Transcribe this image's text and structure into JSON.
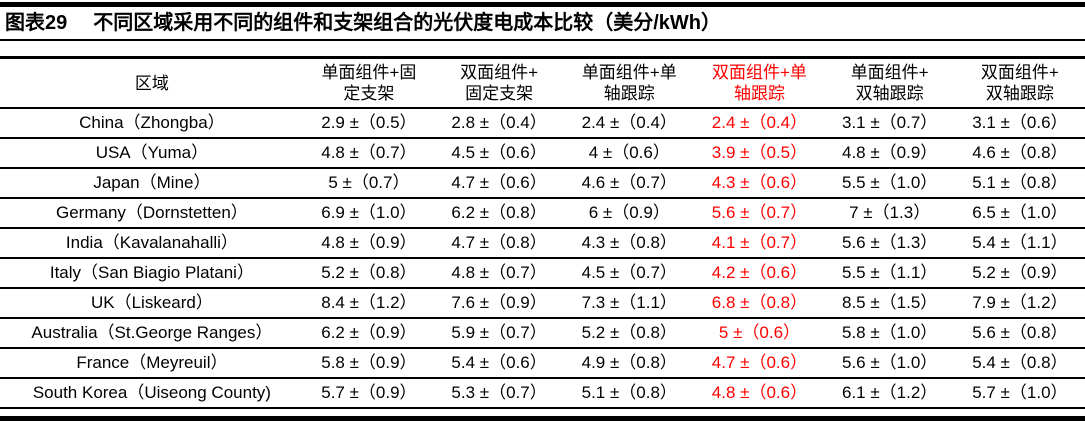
{
  "title": {
    "tag": "图表29",
    "text": "不同区域采用不同的组件和支架组合的光伏度电成本比较（美分/kWh）"
  },
  "table": {
    "region_header": "区域",
    "highlight_color": "#ff0000",
    "columns": [
      {
        "line1": "单面组件+固",
        "line2": "定支架",
        "highlight": false
      },
      {
        "line1": "双面组件+",
        "line2": "固定支架",
        "highlight": false
      },
      {
        "line1": "单面组件+单",
        "line2": "轴跟踪",
        "highlight": false
      },
      {
        "line1": "双面组件+单",
        "line2": "轴跟踪",
        "highlight": true
      },
      {
        "line1": "单面组件+",
        "line2": "双轴跟踪",
        "highlight": false
      },
      {
        "line1": "双面组件+",
        "line2": "双轴跟踪",
        "highlight": false
      }
    ],
    "rows": [
      {
        "region": "China（Zhongba）",
        "values": [
          "2.9 ±（0.5）",
          "2.8 ±（0.4）",
          "2.4 ±（0.4）",
          "2.4 ±（0.4）",
          "3.1 ±（0.7）",
          "3.1 ±（0.6）"
        ]
      },
      {
        "region": "USA（Yuma）",
        "values": [
          "4.8 ±（0.7）",
          "4.5 ±（0.6）",
          "4 ±（0.6）",
          "3.9 ±（0.5）",
          "4.8 ±（0.9）",
          "4.6 ±（0.8）"
        ]
      },
      {
        "region": "Japan（Mine）",
        "values": [
          "5 ±（0.7）",
          "4.7 ±（0.6）",
          "4.6 ±（0.7）",
          "4.3 ±（0.6）",
          "5.5 ±（1.0）",
          "5.1 ±（0.8）"
        ]
      },
      {
        "region": "Germany（Dornstetten）",
        "values": [
          "6.9 ±（1.0）",
          "6.2 ±（0.8）",
          "6 ±（0.9）",
          "5.6 ±（0.7）",
          "7 ±（1.3）",
          "6.5 ±（1.0）"
        ]
      },
      {
        "region": "India（Kavalanahalli）",
        "values": [
          "4.8 ±（0.9）",
          "4.7 ±（0.8）",
          "4.3 ±（0.8）",
          "4.1 ±（0.7）",
          "5.6 ±（1.3）",
          "5.4 ±（1.1）"
        ]
      },
      {
        "region": "Italy（San Biagio Platani）",
        "values": [
          "5.2 ±（0.8）",
          "4.8 ±（0.7）",
          "4.5 ±（0.7）",
          "4.2 ±（0.6）",
          "5.5 ±（1.1）",
          "5.2 ±（0.9）"
        ]
      },
      {
        "region": "UK（Liskeard）",
        "values": [
          "8.4 ±（1.2）",
          "7.6 ±（0.9）",
          "7.3 ±（1.1）",
          "6.8 ±（0.8）",
          "8.5 ±（1.5）",
          "7.9 ±（1.2）"
        ]
      },
      {
        "region": "Australia（St.George Ranges）",
        "values": [
          "6.2 ±（0.9）",
          "5.9 ±（0.7）",
          "5.2 ±（0.8）",
          "5 ±（0.6）",
          "5.8 ±（1.0）",
          "5.6 ±（0.8）"
        ]
      },
      {
        "region": "France（Meyreuil）",
        "values": [
          "5.8 ±（0.9）",
          "5.4 ±（0.6）",
          "4.9 ±（0.8）",
          "4.7 ±（0.6）",
          "5.6 ±（1.0）",
          "5.4 ±（0.8）"
        ]
      },
      {
        "region": "South Korea（Uiseong County)",
        "values": [
          "5.7 ±（0.9）",
          "5.3 ±（0.7）",
          "5.1 ±（0.8）",
          "4.8 ±（0.6）",
          "6.1 ±（1.2）",
          "5.7 ±（1.0）"
        ]
      }
    ]
  }
}
